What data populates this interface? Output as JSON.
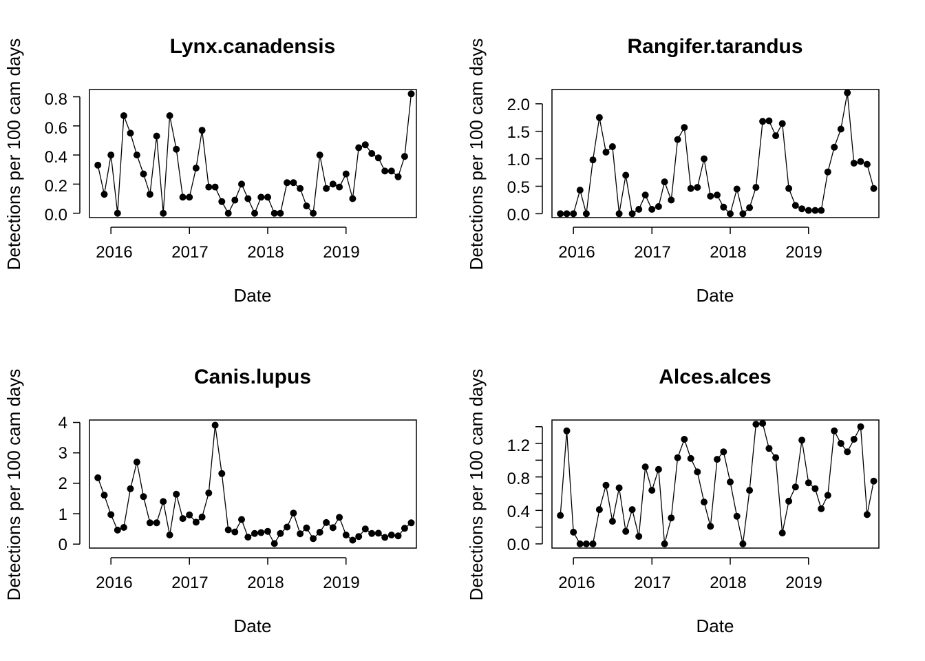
{
  "chart_data": [
    {
      "type": "line",
      "title": "Lynx.canadensis",
      "xlabel": "Date",
      "ylabel": "Detections per 100 cam days",
      "x_tick_labels": [
        "2016",
        "2017",
        "2018",
        "2019"
      ],
      "y_tick_labels": [
        "0.0",
        "0.2",
        "0.4",
        "0.6",
        "0.8"
      ],
      "y_ticks": [
        0,
        0.2,
        0.4,
        0.6,
        0.8
      ],
      "ylim": [
        -0.03,
        0.85
      ],
      "xlim": [
        "2015-09-23",
        "2019-11-25"
      ],
      "x_start": "2015-11",
      "series": [
        {
          "values": [
            0.33,
            0.13,
            0.4,
            0.0,
            0.67,
            0.55,
            0.4,
            0.27,
            0.13,
            0.53,
            0.0,
            0.67,
            0.44,
            0.11,
            0.11,
            0.31,
            0.57,
            0.18,
            0.18,
            0.08,
            0.0,
            0.09,
            0.2,
            0.1,
            0.0,
            0.11,
            0.11,
            0.0,
            0.0,
            0.21,
            0.21,
            0.17,
            0.05,
            0.0,
            0.4,
            0.17,
            0.2,
            0.18,
            0.27,
            0.1,
            0.45,
            0.47,
            0.41,
            0.38,
            0.29,
            0.29,
            0.25,
            0.39,
            0.82
          ]
        }
      ]
    },
    {
      "type": "line",
      "title": "Rangifer.tarandus",
      "xlabel": "Date",
      "ylabel": "Detections per 100 cam days",
      "x_tick_labels": [
        "2016",
        "2017",
        "2018",
        "2019"
      ],
      "y_tick_labels": [
        "0.0",
        "0.5",
        "1.0",
        "1.5",
        "2.0"
      ],
      "y_ticks": [
        0,
        0.5,
        1.0,
        1.5,
        2.0
      ],
      "ylim": [
        -0.07,
        2.26
      ],
      "xlim": [
        "2015-09-23",
        "2019-11-25"
      ],
      "x_start": "2015-11",
      "series": [
        {
          "values": [
            0.0,
            0.0,
            0.0,
            0.43,
            0.0,
            0.98,
            1.75,
            1.12,
            1.22,
            0.0,
            0.7,
            0.0,
            0.08,
            0.34,
            0.08,
            0.13,
            0.58,
            0.25,
            1.35,
            1.57,
            0.46,
            0.48,
            1.0,
            0.32,
            0.34,
            0.12,
            0.0,
            0.45,
            0.0,
            0.11,
            0.48,
            1.68,
            1.69,
            1.42,
            1.64,
            0.46,
            0.15,
            0.09,
            0.06,
            0.06,
            0.06,
            0.76,
            1.21,
            1.54,
            2.2,
            0.92,
            0.95,
            0.9,
            0.46
          ]
        }
      ]
    },
    {
      "type": "line",
      "title": "Canis.lupus",
      "xlabel": "Date",
      "ylabel": "Detections per 100 cam days",
      "x_tick_labels": [
        "2016",
        "2017",
        "2018",
        "2019"
      ],
      "y_tick_labels": [
        "0",
        "1",
        "2",
        "3",
        "4"
      ],
      "y_ticks": [
        0,
        1,
        2,
        3,
        4
      ],
      "ylim": [
        -0.13,
        4.08
      ],
      "xlim": [
        "2015-09-23",
        "2019-11-25"
      ],
      "x_start": "2015-11",
      "series": [
        {
          "values": [
            2.18,
            1.61,
            0.97,
            0.46,
            0.55,
            1.82,
            2.7,
            1.56,
            0.7,
            0.7,
            1.4,
            0.3,
            1.64,
            0.84,
            0.96,
            0.72,
            0.89,
            1.68,
            3.91,
            2.32,
            0.47,
            0.4,
            0.81,
            0.23,
            0.35,
            0.38,
            0.42,
            0.02,
            0.35,
            0.56,
            1.02,
            0.34,
            0.53,
            0.18,
            0.39,
            0.71,
            0.54,
            0.88,
            0.3,
            0.13,
            0.25,
            0.5,
            0.35,
            0.36,
            0.22,
            0.3,
            0.27,
            0.52,
            0.7
          ]
        }
      ]
    },
    {
      "type": "line",
      "title": "Alces.alces",
      "xlabel": "Date",
      "ylabel": "Detections per 100 cam days",
      "x_tick_labels": [
        "2016",
        "2017",
        "2018",
        "2019"
      ],
      "y_tick_labels": [
        "0.0",
        "0.4",
        "0.8",
        "1.2"
      ],
      "y_ticks": [
        0,
        0.2,
        0.4,
        0.6,
        0.8,
        1.0,
        1.2,
        1.4
      ],
      "y_labeled_ticks": [
        0,
        0.4,
        0.8,
        1.2
      ],
      "ylim": [
        -0.05,
        1.48
      ],
      "xlim": [
        "2015-09-23",
        "2019-11-25"
      ],
      "x_start": "2015-11",
      "series": [
        {
          "values": [
            0.34,
            1.35,
            0.14,
            0.0,
            0.0,
            0.0,
            0.41,
            0.7,
            0.27,
            0.67,
            0.15,
            0.41,
            0.09,
            0.92,
            0.64,
            0.89,
            0.0,
            0.31,
            1.03,
            1.25,
            1.02,
            0.86,
            0.5,
            0.21,
            1.01,
            1.1,
            0.74,
            0.33,
            0.0,
            0.64,
            1.43,
            1.44,
            1.14,
            1.03,
            0.13,
            0.51,
            0.68,
            1.24,
            0.73,
            0.66,
            0.42,
            0.58,
            1.35,
            1.2,
            1.1,
            1.25,
            1.4,
            0.35,
            0.75
          ]
        }
      ]
    }
  ]
}
